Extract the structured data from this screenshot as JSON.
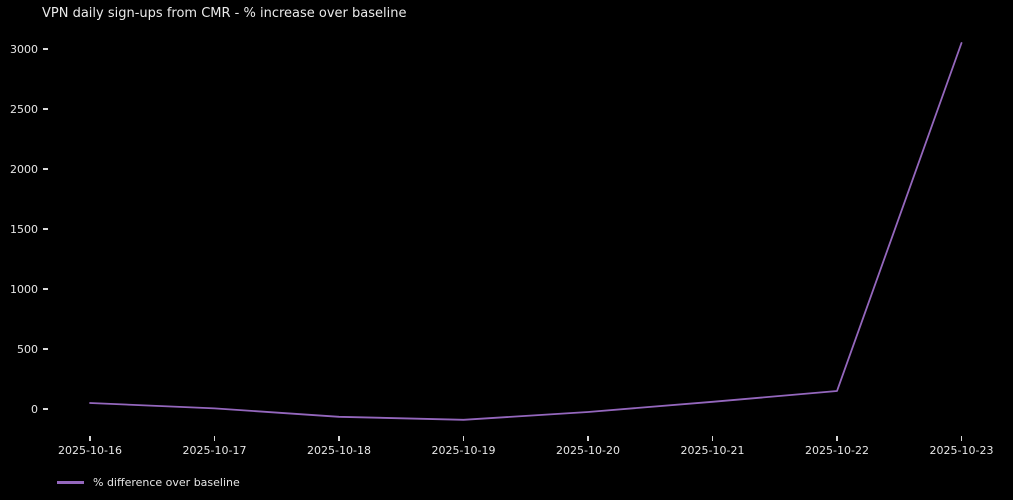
{
  "title": "VPN daily sign-ups from CMR - % increase over baseline",
  "legend": {
    "label": "% difference over baseline"
  },
  "colors": {
    "background": "#000000",
    "text": "#e6e6e6",
    "line": "#9467bd"
  },
  "chart_data": {
    "type": "line",
    "title": "VPN daily sign-ups from CMR - % increase over baseline",
    "categories": [
      "2025-10-16",
      "2025-10-17",
      "2025-10-18",
      "2025-10-19",
      "2025-10-20",
      "2025-10-21",
      "2025-10-22",
      "2025-10-23"
    ],
    "series": [
      {
        "name": "% difference over baseline",
        "color": "#9467bd",
        "values": [
          50,
          5,
          -65,
          -90,
          -25,
          60,
          150,
          3050
        ]
      }
    ],
    "xlabel": "",
    "ylabel": "",
    "yticks": [
      0,
      500,
      1000,
      1500,
      2000,
      2500,
      3000
    ],
    "ylim": [
      -250,
      3200
    ],
    "grid": false,
    "legend_position": "lower-left-below-axis"
  }
}
